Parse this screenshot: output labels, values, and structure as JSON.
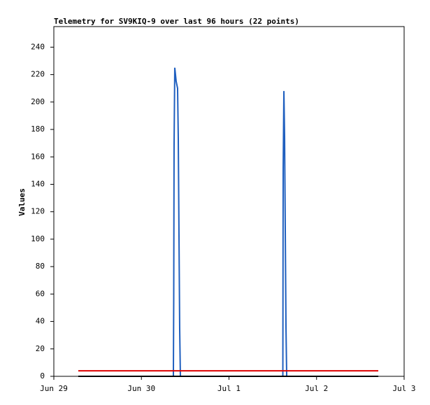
{
  "chart_data": {
    "type": "line",
    "title": "Telemetry for SV9KIQ-9 over last 96 hours (22 points)",
    "y_label": "Values",
    "xlim": [
      0,
      4
    ],
    "xticks": [
      {
        "value": 0,
        "label": "Jun 29"
      },
      {
        "value": 1,
        "label": "Jun 30"
      },
      {
        "value": 2,
        "label": "Jul 1"
      },
      {
        "value": 3,
        "label": "Jul 2"
      },
      {
        "value": 4,
        "label": "Jul 3"
      }
    ],
    "ylim": [
      0,
      255
    ],
    "yticks": [
      0,
      20,
      40,
      60,
      80,
      100,
      120,
      140,
      160,
      180,
      200,
      220,
      240
    ],
    "series": [
      {
        "color": "#1f5fbf",
        "x": [
          0.279,
          1.365,
          1.369,
          1.373,
          1.381,
          1.389,
          1.397,
          1.413,
          1.421,
          1.429,
          1.437,
          1.445,
          2.615,
          2.619,
          2.627,
          2.635,
          2.643,
          2.651,
          2.659,
          3.705
        ],
        "values": [
          0,
          0,
          56,
          168,
          225,
          220,
          215,
          210,
          174,
          104,
          35,
          0,
          0,
          152,
          208,
          174,
          104,
          35,
          0,
          0
        ]
      },
      {
        "color": "#dd0000",
        "x": [
          0.279,
          3.705
        ],
        "values": [
          4,
          4
        ]
      },
      {
        "color": "#000000",
        "x": [
          0.279,
          3.705
        ],
        "values": [
          0,
          0
        ]
      }
    ]
  }
}
